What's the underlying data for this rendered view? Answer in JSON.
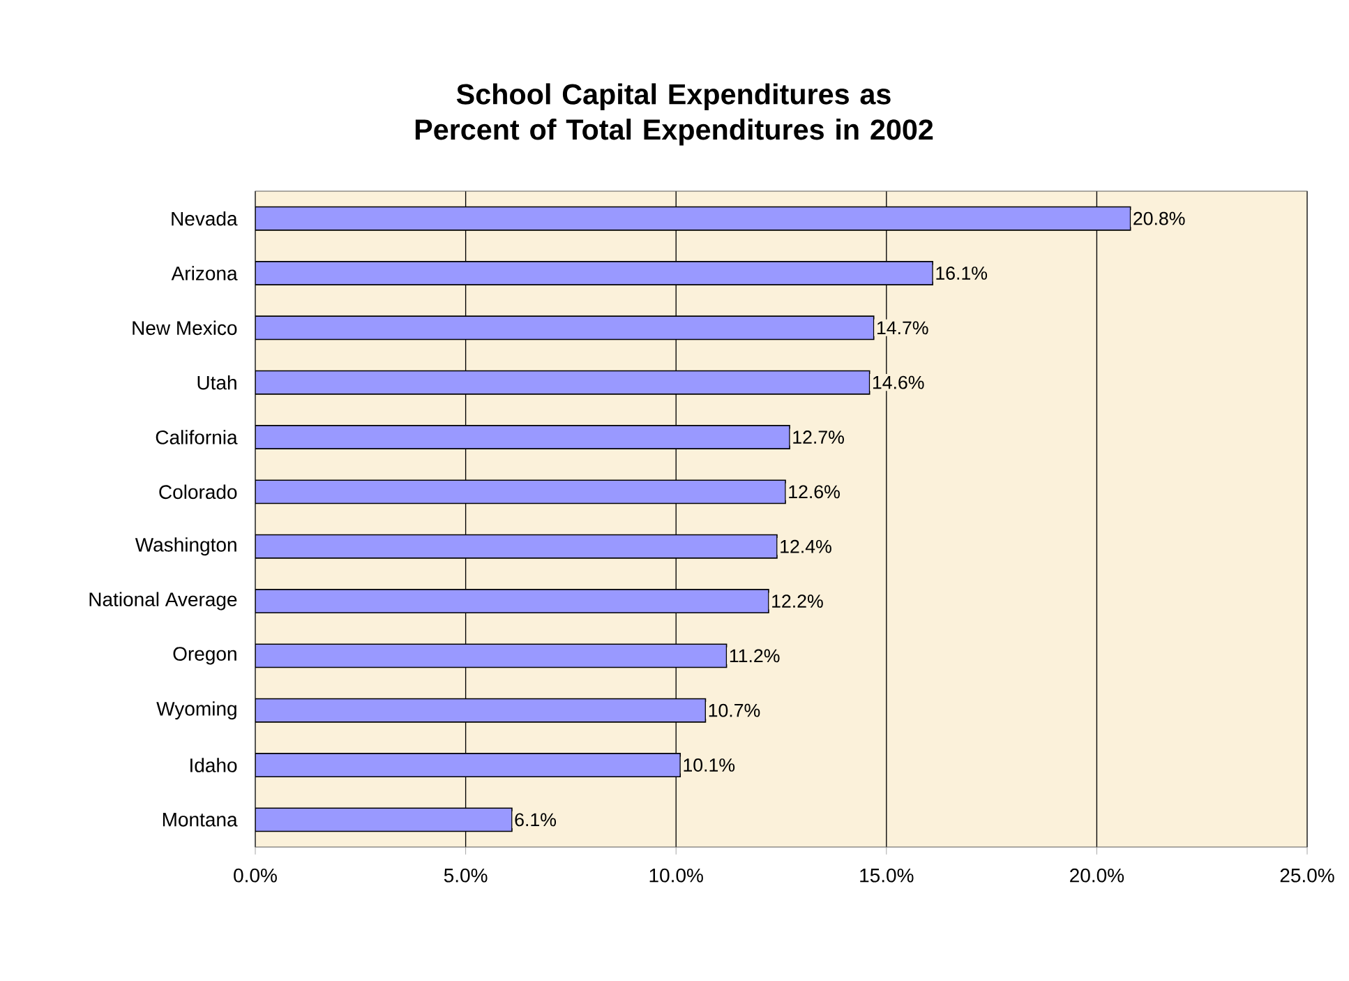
{
  "chart_data": {
    "type": "bar",
    "orientation": "horizontal",
    "title": "School Capital Expenditures as Percent of Total Expenditures in 2002",
    "categories": [
      "Nevada",
      "Arizona",
      "New Mexico",
      "Utah",
      "California",
      "Colorado",
      "Washington",
      "National Average",
      "Oregon",
      "Wyoming",
      "Idaho",
      "Montana"
    ],
    "values": [
      20.8,
      16.1,
      14.7,
      14.6,
      12.7,
      12.6,
      12.4,
      12.2,
      11.2,
      10.7,
      10.1,
      6.1
    ],
    "value_labels": [
      "20.8%",
      "16.1%",
      "14.7%",
      "14.6%",
      "12.7%",
      "12.6%",
      "12.4%",
      "12.2%",
      "11.2%",
      "10.7%",
      "10.1%",
      "6.1%"
    ],
    "color": "#9999ff",
    "xlim": [
      0,
      25
    ],
    "xticks": [
      {
        "value": 0,
        "label": "0.0%"
      },
      {
        "value": 5,
        "label": "5.0%"
      },
      {
        "value": 10,
        "label": "10.0%"
      },
      {
        "value": 15,
        "label": "15.0%"
      },
      {
        "value": 20,
        "label": "20.0%"
      },
      {
        "value": 25,
        "label": "25.0%"
      }
    ],
    "grid": "x"
  }
}
